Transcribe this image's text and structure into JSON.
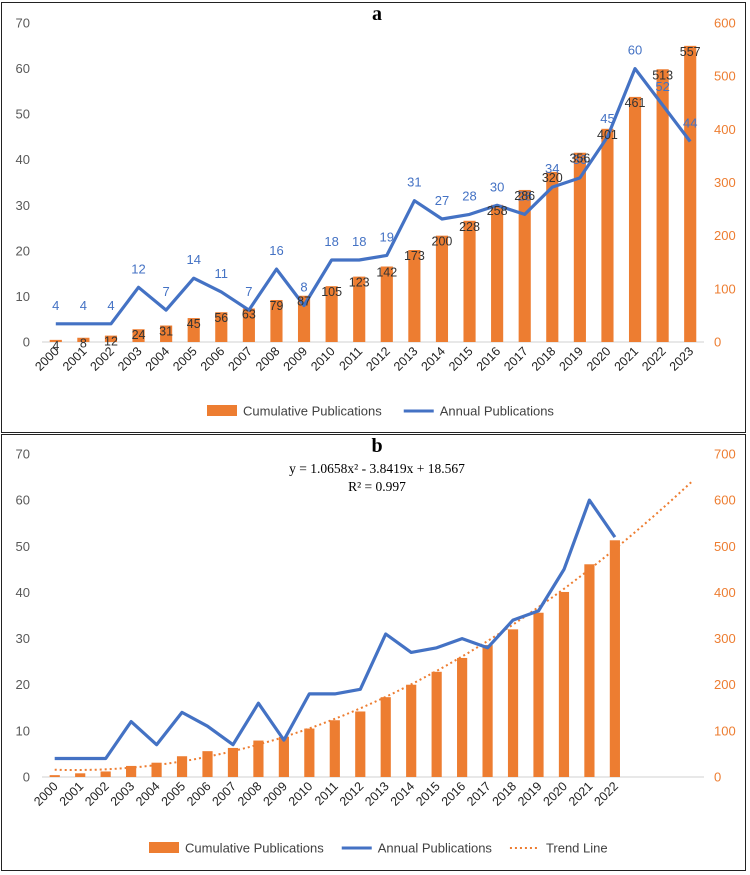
{
  "colors": {
    "bar": "#ed7d31",
    "line": "#4472c4",
    "trend": "#ed7d31",
    "leftAxis": "#595959",
    "rightAxis": "#ed7d31"
  },
  "chart_data": [
    {
      "type": "bar+line",
      "panel_label": "a",
      "categories": [
        "2000",
        "2001",
        "2002",
        "2003",
        "2004",
        "2005",
        "2006",
        "2007",
        "2008",
        "2009",
        "2010",
        "2011",
        "2012",
        "2013",
        "2014",
        "2015",
        "2016",
        "2017",
        "2018",
        "2019",
        "2020",
        "2021",
        "2022",
        "2023"
      ],
      "series": [
        {
          "name": "Cumulative Publications",
          "type": "bar",
          "axis": "right",
          "values": [
            4,
            8,
            12,
            24,
            31,
            45,
            56,
            63,
            79,
            87,
            105,
            123,
            142,
            173,
            200,
            228,
            258,
            286,
            320,
            356,
            401,
            461,
            513,
            557
          ]
        },
        {
          "name": "Annual Publications",
          "type": "line",
          "axis": "left",
          "values": [
            4,
            4,
            4,
            12,
            7,
            14,
            11,
            7,
            16,
            8,
            18,
            18,
            19,
            31,
            27,
            28,
            30,
            28,
            34,
            36,
            45,
            60,
            52,
            44
          ]
        }
      ],
      "left_ylim": [
        0,
        70
      ],
      "left_ticks": [
        "0",
        "10",
        "20",
        "30",
        "40",
        "50",
        "60",
        "70"
      ],
      "right_ylim": [
        0,
        600
      ],
      "right_ticks": [
        "0",
        "100",
        "200",
        "300",
        "400",
        "500",
        "600"
      ],
      "legend": [
        "Cumulative Publications",
        "Annual Publications"
      ],
      "legend_position": "bottom"
    },
    {
      "type": "bar+line+trend",
      "panel_label": "b",
      "categories": [
        "2000",
        "2001",
        "2002",
        "2003",
        "2004",
        "2005",
        "2006",
        "2007",
        "2008",
        "2009",
        "2010",
        "2011",
        "2012",
        "2013",
        "2014",
        "2015",
        "2016",
        "2017",
        "2018",
        "2019",
        "2020",
        "2021",
        "2022"
      ],
      "series": [
        {
          "name": "Cumulative Publications",
          "type": "bar",
          "axis": "right",
          "values": [
            4,
            8,
            12,
            24,
            31,
            45,
            56,
            63,
            79,
            87,
            105,
            123,
            142,
            173,
            200,
            228,
            258,
            286,
            320,
            356,
            401,
            461,
            513
          ]
        },
        {
          "name": "Annual Publications",
          "type": "line",
          "axis": "left",
          "values": [
            4,
            4,
            4,
            12,
            7,
            14,
            11,
            7,
            16,
            8,
            18,
            18,
            19,
            31,
            27,
            28,
            30,
            28,
            34,
            36,
            45,
            60,
            52
          ]
        },
        {
          "name": "Trend Line",
          "type": "trend",
          "axis": "right",
          "coefficients": [
            1.0658,
            -3.8419,
            18.567
          ],
          "x_range": [
            1,
            26
          ]
        }
      ],
      "equation": "y = 1.0658x² - 3.8419x + 18.567",
      "r_squared": "R² = 0.997",
      "left_ylim": [
        0,
        70
      ],
      "left_ticks": [
        "0",
        "10",
        "20",
        "30",
        "40",
        "50",
        "60",
        "70"
      ],
      "right_ylim": [
        0,
        700
      ],
      "right_ticks": [
        "0",
        "100",
        "200",
        "300",
        "400",
        "500",
        "600",
        "700"
      ],
      "legend": [
        "Cumulative Publications",
        "Annual Publications",
        "Trend Line"
      ],
      "legend_position": "bottom"
    }
  ]
}
